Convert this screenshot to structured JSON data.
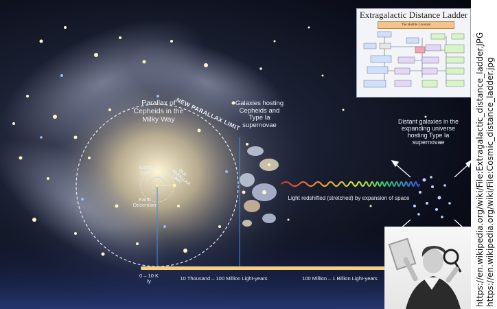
{
  "scene": {
    "parallax_label": "Parallax of Cepheids in the Milky Way",
    "new_parallax_limit": "NEW PARALLAX LIMIT",
    "old_parallax_limit": "OLD PARALLAX LIMIT",
    "earth_june": "Earth June",
    "earth_december": "Earth December",
    "galaxies_label": "Galaxies hosting Cepheids and Type Ia supernovae",
    "redshift_label": "Light redshifted (stretched) by expansion of space",
    "distant_label": "Distant galaxies in the expanding universe hosting Type Ia supernovae",
    "scale": {
      "first": "0 – 10 K ly",
      "middle": "10 Thousand – 100 Million Light-years",
      "last": "100 Million – 1 Billion Light-years"
    }
  },
  "inset": {
    "title": "Extragalactic Distance Ladder",
    "subtitle": "The Hubble Constant"
  },
  "credits": {
    "line1": "https://en.wikipedia.org/wiki/File:Extragalactic_distance_ladder.JPG",
    "line2": "https://en.wikipedia.org/wiki/File:Cosmic_distance_ladder.jpg"
  },
  "colors": {
    "timeline": "#f3cf86",
    "redshift_start": "#d8313a",
    "redshift_end": "#3b56e0"
  }
}
